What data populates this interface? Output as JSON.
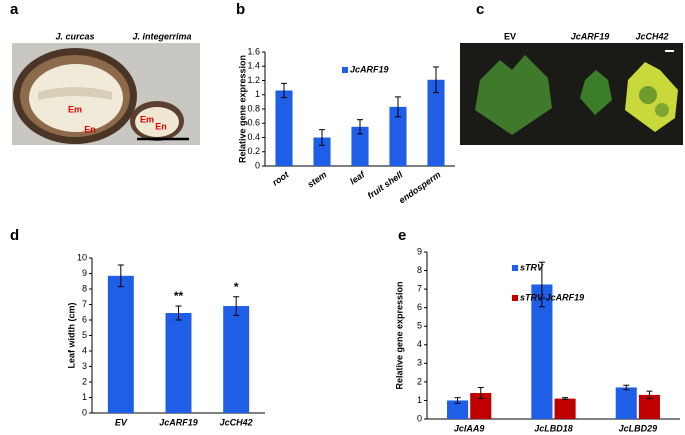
{
  "panel_labels": [
    "a",
    "b",
    "c",
    "d",
    "e"
  ],
  "photo_a": {
    "species": [
      "J. curcas",
      "J. integerrima"
    ],
    "tissue_labels": [
      "Em",
      "En",
      "Em",
      "En"
    ]
  },
  "photo_c": {
    "labels": [
      "EV",
      "JcARF19",
      "JcCH42"
    ]
  },
  "chart_data": [
    {
      "type": "bar",
      "y_label": "Relative gene expression",
      "categories": [
        "root",
        "stem",
        "leaf",
        "fruit shell",
        "endosperm"
      ],
      "series": [
        {
          "name": "JcARF19",
          "color": "#1f5fe8",
          "values": [
            1.06,
            0.4,
            0.55,
            0.83,
            1.21
          ],
          "errors": [
            0.1,
            0.11,
            0.1,
            0.14,
            0.18
          ]
        }
      ],
      "ylim": [
        0,
        1.6
      ],
      "yticks": [
        0,
        0.2,
        0.4,
        0.6,
        0.8,
        1,
        1.2,
        1.4,
        1.6
      ],
      "legend": "top-center"
    },
    {
      "type": "bar",
      "y_label": "Leaf width (cm)",
      "categories": [
        "EV",
        "JcARF19",
        "JcCH42"
      ],
      "series": [
        {
          "color": "#1f5fe8",
          "values": [
            8.85,
            6.45,
            6.9
          ],
          "errors": [
            0.7,
            0.45,
            0.6
          ]
        }
      ],
      "annotations": [
        "**",
        "*"
      ],
      "ylim": [
        0,
        10
      ],
      "yticks": [
        0,
        1,
        2,
        3,
        4,
        5,
        6,
        7,
        8,
        9,
        10
      ]
    },
    {
      "type": "bar",
      "y_label": "Relative gene expression",
      "categories": [
        "JcIAA9",
        "JcLBD18",
        "JcLBD29"
      ],
      "series": [
        {
          "name": "sTRV",
          "color": "#1f5fe8",
          "values": [
            1.0,
            7.25,
            1.7
          ],
          "errors": [
            0.15,
            1.2,
            0.12
          ]
        },
        {
          "name": "sTRV-JcARF19",
          "color": "#c00000",
          "values": [
            1.4,
            1.1,
            1.3
          ],
          "errors": [
            0.3,
            0.05,
            0.2
          ]
        }
      ],
      "ylim": [
        0,
        9
      ],
      "yticks": [
        0,
        1,
        2,
        3,
        4,
        5,
        6,
        7,
        8,
        9
      ],
      "legend": "top-center"
    }
  ]
}
